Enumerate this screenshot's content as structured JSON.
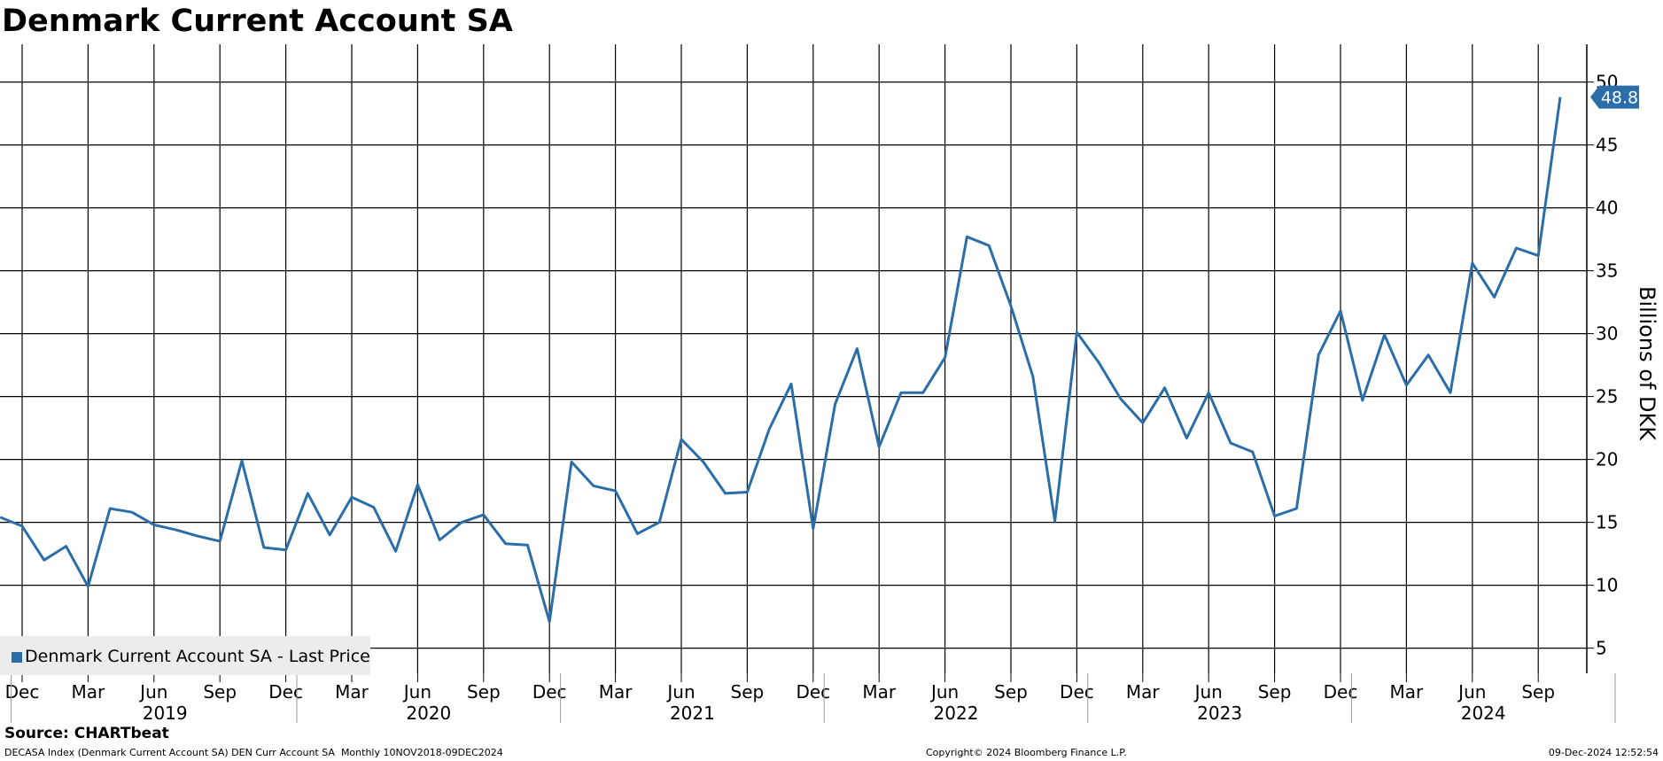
{
  "header": {
    "title": "Denmark Current Account SA"
  },
  "footer": {
    "source": "Source: CHARTbeat",
    "description": "DECASA Index (Denmark Current Account SA) DEN Curr Account SA  Monthly 10NOV2018-09DEC2024",
    "copyright": "Copyright© 2024 Bloomberg Finance L.P.",
    "timestamp": "09-Dec-2024 12:52:54"
  },
  "legend": {
    "label": "Denmark Current Account SA - Last Price"
  },
  "colors": {
    "line": "#2a6da8",
    "grid": "#000000",
    "legend_bg": "#ececec"
  },
  "chart_data": {
    "type": "line",
    "title": "Denmark Current Account SA",
    "ylabel": "Billions of DKK",
    "y_axis_side": "right",
    "ylim": [
      3,
      53
    ],
    "yticks": [
      5,
      10,
      15,
      20,
      25,
      30,
      35,
      40,
      45,
      50
    ],
    "grid": true,
    "legend_position": "bottom-left",
    "last_value_label": "48.8",
    "month_tick_labels": [
      {
        "date": "2018-12",
        "label": "Dec"
      },
      {
        "date": "2019-03",
        "label": "Mar"
      },
      {
        "date": "2019-06",
        "label": "Jun"
      },
      {
        "date": "2019-09",
        "label": "Sep"
      },
      {
        "date": "2019-12",
        "label": "Dec"
      },
      {
        "date": "2020-03",
        "label": "Mar"
      },
      {
        "date": "2020-06",
        "label": "Jun"
      },
      {
        "date": "2020-09",
        "label": "Sep"
      },
      {
        "date": "2020-12",
        "label": "Dec"
      },
      {
        "date": "2021-03",
        "label": "Mar"
      },
      {
        "date": "2021-06",
        "label": "Jun"
      },
      {
        "date": "2021-09",
        "label": "Sep"
      },
      {
        "date": "2021-12",
        "label": "Dec"
      },
      {
        "date": "2022-03",
        "label": "Mar"
      },
      {
        "date": "2022-06",
        "label": "Jun"
      },
      {
        "date": "2022-09",
        "label": "Sep"
      },
      {
        "date": "2022-12",
        "label": "Dec"
      },
      {
        "date": "2023-03",
        "label": "Mar"
      },
      {
        "date": "2023-06",
        "label": "Jun"
      },
      {
        "date": "2023-09",
        "label": "Sep"
      },
      {
        "date": "2023-12",
        "label": "Dec"
      },
      {
        "date": "2024-03",
        "label": "Mar"
      },
      {
        "date": "2024-06",
        "label": "Jun"
      },
      {
        "date": "2024-09",
        "label": "Sep"
      }
    ],
    "year_labels": [
      "2019",
      "2020",
      "2021",
      "2022",
      "2023",
      "2024"
    ],
    "series": [
      {
        "name": "Denmark Current Account SA - Last Price",
        "x": [
          "2018-11",
          "2018-12",
          "2019-01",
          "2019-02",
          "2019-03",
          "2019-04",
          "2019-05",
          "2019-06",
          "2019-07",
          "2019-08",
          "2019-09",
          "2019-10",
          "2019-11",
          "2019-12",
          "2020-01",
          "2020-02",
          "2020-03",
          "2020-04",
          "2020-05",
          "2020-06",
          "2020-07",
          "2020-08",
          "2020-09",
          "2020-10",
          "2020-11",
          "2020-12",
          "2021-01",
          "2021-02",
          "2021-03",
          "2021-04",
          "2021-05",
          "2021-06",
          "2021-07",
          "2021-08",
          "2021-09",
          "2021-10",
          "2021-11",
          "2021-12",
          "2022-01",
          "2022-02",
          "2022-03",
          "2022-04",
          "2022-05",
          "2022-06",
          "2022-07",
          "2022-08",
          "2022-09",
          "2022-10",
          "2022-11",
          "2022-12",
          "2023-01",
          "2023-02",
          "2023-03",
          "2023-04",
          "2023-05",
          "2023-06",
          "2023-07",
          "2023-08",
          "2023-09",
          "2023-10",
          "2023-11",
          "2023-12",
          "2024-01",
          "2024-02",
          "2024-03",
          "2024-04",
          "2024-05",
          "2024-06",
          "2024-07",
          "2024-08",
          "2024-09",
          "2024-10"
        ],
        "values": [
          15.4,
          14.7,
          12.0,
          13.1,
          9.9,
          16.1,
          15.8,
          14.8,
          14.4,
          13.9,
          13.5,
          19.9,
          13.0,
          12.8,
          17.3,
          14.0,
          17.0,
          16.2,
          12.7,
          18.0,
          13.6,
          15.0,
          15.6,
          13.3,
          13.2,
          7.1,
          19.8,
          17.9,
          17.5,
          14.1,
          15.0,
          21.6,
          19.8,
          17.3,
          17.4,
          22.4,
          26.0,
          14.5,
          24.4,
          28.8,
          21.0,
          25.3,
          25.3,
          28.1,
          37.7,
          37.0,
          32.2,
          26.6,
          15.1,
          30.1,
          27.7,
          24.8,
          22.9,
          25.7,
          21.7,
          25.3,
          21.3,
          20.6,
          15.5,
          16.1,
          28.3,
          31.8,
          24.7,
          29.9,
          25.9,
          28.3,
          25.3,
          35.6,
          32.9,
          36.8,
          36.2,
          48.8
        ]
      }
    ]
  }
}
